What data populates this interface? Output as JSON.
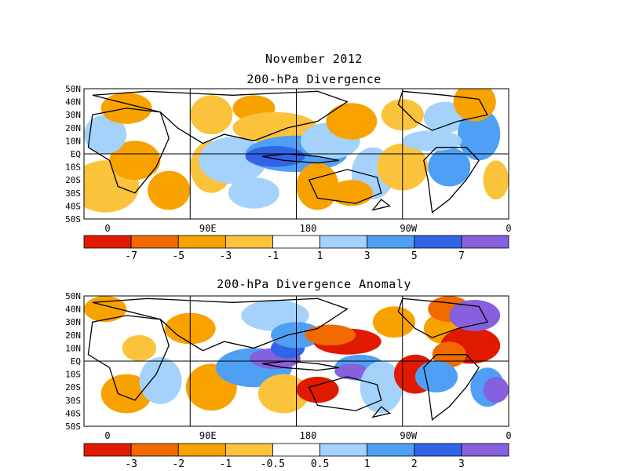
{
  "title": "November 2012",
  "panels": [
    {
      "subtitle": "200-hPa Divergence",
      "lat_labels": [
        "50N",
        "40N",
        "30N",
        "20N",
        "10N",
        "EQ",
        "10S",
        "20S",
        "30S",
        "40S",
        "50S"
      ],
      "lon_labels": [
        "0",
        "90E",
        "180",
        "90W",
        "0"
      ],
      "colorbar": {
        "colors": [
          "#e01a00",
          "#f06a00",
          "#f8a200",
          "#fbc23c",
          "#ffffff",
          "#a4d2fb",
          "#4f9ff4",
          "#3264e8",
          "#8660dd"
        ],
        "labels": [
          "-7",
          "-5",
          "-3",
          "-1",
          "1",
          "3",
          "5",
          "7"
        ]
      }
    },
    {
      "subtitle": "200-hPa Divergence Anomaly",
      "lat_labels": [
        "50N",
        "40N",
        "30N",
        "20N",
        "10N",
        "EQ",
        "10S",
        "20S",
        "30S",
        "40S",
        "50S"
      ],
      "lon_labels": [
        "0",
        "90E",
        "180",
        "90W",
        "0"
      ],
      "colorbar": {
        "colors": [
          "#e01a00",
          "#f06a00",
          "#f8a200",
          "#fbc23c",
          "#ffffff",
          "#a4d2fb",
          "#4f9ff4",
          "#3264e8",
          "#8660dd"
        ],
        "labels": [
          "-3",
          "-2",
          "-1",
          "-0.5",
          "0.5",
          "1",
          "2",
          "3"
        ]
      }
    }
  ]
}
